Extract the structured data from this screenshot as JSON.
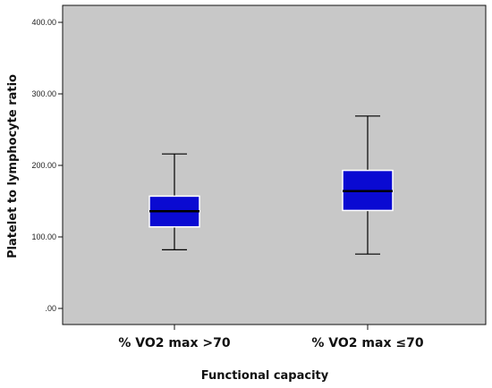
{
  "chart_data": {
    "type": "boxplot",
    "xlabel": "Functional capacity",
    "ylabel": "Platelet to lymphocyte ratio",
    "ylim": [
      0,
      410
    ],
    "yticks": [
      0,
      100,
      200,
      300,
      400
    ],
    "ytick_labels": [
      ".00",
      "100.00",
      "200.00",
      "300.00",
      "400.00"
    ],
    "categories": [
      "% VO2 max >70",
      "% VO2 max ≤70"
    ],
    "boxes": [
      {
        "category": "% VO2 max >70",
        "min": 82,
        "q1": 114,
        "median": 136,
        "q3": 157,
        "max": 216
      },
      {
        "category": "% VO2 max ≤70",
        "min": 76,
        "q1": 137,
        "median": 164,
        "q3": 193,
        "max": 269
      }
    ],
    "grid": false,
    "colors": {
      "plot_background": "#c8c8c8",
      "box_fill": "#0a0ad2",
      "line": "#000000"
    }
  }
}
